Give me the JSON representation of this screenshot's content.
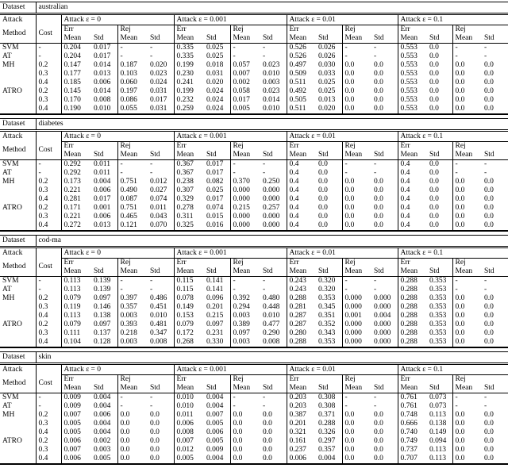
{
  "colors": {
    "text": "#000000",
    "background": "#ffffff",
    "rule": "#000000"
  },
  "labels": {
    "dataset": "Dataset",
    "attack": "Attack",
    "method": "Method",
    "cost": "Cost",
    "err": "Err",
    "rej": "Rej",
    "mean": "Mean",
    "std": "Std",
    "attack_groups": [
      "Attack ε = 0",
      "Attack ε = 0.001",
      "Attack ε = 0.01",
      "Attack ε = 0.1"
    ]
  },
  "tables": [
    {
      "dataset": "australian",
      "rows": [
        {
          "method": "SVM",
          "cost": "-",
          "values": [
            "0.204",
            "0.017",
            "-",
            "-",
            "0.335",
            "0.025",
            "-",
            "-",
            "0.526",
            "0.026",
            "-",
            "-",
            "0.553",
            "0.0",
            "-",
            "-"
          ],
          "bold": [
            12
          ]
        },
        {
          "method": "AT",
          "cost": "-",
          "values": [
            "0.204",
            "0.017",
            "-",
            "-",
            "0.335",
            "0.025",
            "-",
            "-",
            "0.526",
            "0.026",
            "-",
            "-",
            "0.553",
            "0.0",
            "-",
            "-"
          ],
          "bold": [
            12
          ]
        },
        {
          "method": "MH",
          "cost": "0.2",
          "values": [
            "0.147",
            "0.014",
            "0.187",
            "0.020",
            "0.199",
            "0.018",
            "0.057",
            "0.023",
            "0.497",
            "0.030",
            "0.0",
            "0.0",
            "0.553",
            "0.0",
            "0.0",
            "0.0"
          ],
          "bold": [
            4,
            12
          ]
        },
        {
          "method": "",
          "cost": "0.3",
          "values": [
            "0.177",
            "0.013",
            "0.103",
            "0.023",
            "0.230",
            "0.031",
            "0.007",
            "0.010",
            "0.509",
            "0.033",
            "0.0",
            "0.0",
            "0.553",
            "0.0",
            "0.0",
            "0.0"
          ],
          "bold": [
            12
          ]
        },
        {
          "method": "",
          "cost": "0.4",
          "values": [
            "0.185",
            "0.006",
            "0.060",
            "0.024",
            "0.241",
            "0.020",
            "0.002",
            "0.003",
            "0.511",
            "0.025",
            "0.0",
            "0.0",
            "0.553",
            "0.0",
            "0.0",
            "0.0"
          ],
          "bold": [
            12
          ]
        },
        {
          "method": "ATRO",
          "cost": "0.2",
          "values": [
            "0.145",
            "0.014",
            "0.197",
            "0.031",
            "0.199",
            "0.024",
            "0.058",
            "0.023",
            "0.492",
            "0.025",
            "0.0",
            "0.0",
            "0.553",
            "0.0",
            "0.0",
            "0.0"
          ],
          "bold": [
            0,
            4,
            8,
            12
          ]
        },
        {
          "method": "",
          "cost": "0.3",
          "values": [
            "0.170",
            "0.008",
            "0.086",
            "0.017",
            "0.232",
            "0.024",
            "0.017",
            "0.014",
            "0.505",
            "0.013",
            "0.0",
            "0.0",
            "0.553",
            "0.0",
            "0.0",
            "0.0"
          ],
          "bold": [
            12
          ]
        },
        {
          "method": "",
          "cost": "0.4",
          "values": [
            "0.190",
            "0.010",
            "0.055",
            "0.031",
            "0.259",
            "0.024",
            "0.005",
            "0.010",
            "0.511",
            "0.020",
            "0.0",
            "0.0",
            "0.553",
            "0.0",
            "0.0",
            "0.0"
          ],
          "bold": [
            12
          ]
        }
      ]
    },
    {
      "dataset": "diabetes",
      "rows": [
        {
          "method": "SVM",
          "cost": "-",
          "values": [
            "0.292",
            "0.011",
            "-",
            "-",
            "0.367",
            "0.017",
            "-",
            "-",
            "0.4",
            "0.0",
            "-",
            "-",
            "0.4",
            "0.0",
            "-",
            "-"
          ],
          "bold": [
            8,
            12
          ]
        },
        {
          "method": "AT",
          "cost": "-",
          "values": [
            "0.292",
            "0.011",
            "-",
            "-",
            "0.367",
            "0.017",
            "-",
            "-",
            "0.4",
            "0.0",
            "-",
            "-",
            "0.4",
            "0.0",
            "-",
            "-"
          ],
          "bold": [
            8,
            12
          ]
        },
        {
          "method": "MH",
          "cost": "0.2",
          "values": [
            "0.173",
            "0.004",
            "0.751",
            "0.012",
            "0.238",
            "0.082",
            "0.370",
            "0.250",
            "0.4",
            "0.0",
            "0.0",
            "0.0",
            "0.4",
            "0.0",
            "0.0",
            "0.0"
          ],
          "bold": [
            4,
            8,
            12
          ]
        },
        {
          "method": "",
          "cost": "0.3",
          "values": [
            "0.221",
            "0.006",
            "0.490",
            "0.027",
            "0.307",
            "0.025",
            "0.000",
            "0.000",
            "0.4",
            "0.0",
            "0.0",
            "0.0",
            "0.4",
            "0.0",
            "0.0",
            "0.0"
          ],
          "bold": [
            8,
            12
          ]
        },
        {
          "method": "",
          "cost": "0.4",
          "values": [
            "0.281",
            "0.017",
            "0.087",
            "0.074",
            "0.329",
            "0.017",
            "0.000",
            "0.000",
            "0.4",
            "0.0",
            "0.0",
            "0.0",
            "0.4",
            "0.0",
            "0.0",
            "0.0"
          ],
          "bold": [
            8,
            12
          ]
        },
        {
          "method": "ATRO",
          "cost": "0.2",
          "values": [
            "0.171",
            "0.001",
            "0.751",
            "0.011",
            "0.278",
            "0.074",
            "0.215",
            "0.257",
            "0.4",
            "0.0",
            "0.0",
            "0.0",
            "0.4",
            "0.0",
            "0.0",
            "0.0"
          ],
          "bold": [
            0,
            8,
            12
          ]
        },
        {
          "method": "",
          "cost": "0.3",
          "values": [
            "0.221",
            "0.006",
            "0.465",
            "0.043",
            "0.311",
            "0.015",
            "0.000",
            "0.000",
            "0.4",
            "0.0",
            "0.0",
            "0.0",
            "0.4",
            "0.0",
            "0.0",
            "0.0"
          ],
          "bold": [
            8,
            12
          ]
        },
        {
          "method": "",
          "cost": "0.4",
          "values": [
            "0.272",
            "0.013",
            "0.121",
            "0.070",
            "0.325",
            "0.016",
            "0.000",
            "0.000",
            "0.4",
            "0.0",
            "0.0",
            "0.0",
            "0.4",
            "0.0",
            "0.0",
            "0.0"
          ],
          "bold": [
            8,
            12
          ]
        }
      ]
    },
    {
      "dataset": "cod-ma",
      "rows": [
        {
          "method": "SVM",
          "cost": "-",
          "values": [
            "0.113",
            "0.139",
            "-",
            "-",
            "0.115",
            "0.141",
            "-",
            "-",
            "0.243",
            "0.320",
            "-",
            "-",
            "0.288",
            "0.353",
            "-",
            "-"
          ],
          "bold": [
            8,
            12
          ]
        },
        {
          "method": "AT",
          "cost": "-",
          "values": [
            "0.113",
            "0.139",
            "-",
            "-",
            "0.115",
            "0.141",
            "-",
            "-",
            "0.243",
            "0.320",
            "-",
            "-",
            "0.288",
            "0.353",
            "-",
            "-"
          ],
          "bold": [
            8,
            12
          ]
        },
        {
          "method": "MH",
          "cost": "0.2",
          "values": [
            "0.079",
            "0.097",
            "0.397",
            "0.486",
            "0.078",
            "0.096",
            "0.392",
            "0.480",
            "0.288",
            "0.353",
            "0.000",
            "0.000",
            "0.288",
            "0.353",
            "0.0",
            "0.0"
          ],
          "bold": [
            0,
            4,
            12
          ]
        },
        {
          "method": "",
          "cost": "0.3",
          "values": [
            "0.119",
            "0.146",
            "0.357",
            "0.451",
            "0.149",
            "0.201",
            "0.294",
            "0.448",
            "0.281",
            "0.345",
            "0.000",
            "0.000",
            "0.288",
            "0.353",
            "0.0",
            "0.0"
          ],
          "bold": [
            12
          ]
        },
        {
          "method": "",
          "cost": "0.4",
          "values": [
            "0.113",
            "0.138",
            "0.003",
            "0.010",
            "0.153",
            "0.215",
            "0.003",
            "0.010",
            "0.287",
            "0.351",
            "0.001",
            "0.004",
            "0.288",
            "0.353",
            "0.0",
            "0.0"
          ],
          "bold": [
            12
          ]
        },
        {
          "method": "ATRO",
          "cost": "0.2",
          "values": [
            "0.079",
            "0.097",
            "0.393",
            "0.481",
            "0.079",
            "0.097",
            "0.389",
            "0.477",
            "0.287",
            "0.352",
            "0.000",
            "0.000",
            "0.288",
            "0.353",
            "0.0",
            "0.0"
          ],
          "bold": [
            0,
            12
          ]
        },
        {
          "method": "",
          "cost": "0.3",
          "values": [
            "0.111",
            "0.137",
            "0.218",
            "0.347",
            "0.172",
            "0.231",
            "0.097",
            "0.290",
            "0.280",
            "0.343",
            "0.000",
            "0.000",
            "0.288",
            "0.353",
            "0.0",
            "0.0"
          ],
          "bold": [
            12
          ]
        },
        {
          "method": "",
          "cost": "0.4",
          "values": [
            "0.104",
            "0.128",
            "0.003",
            "0.008",
            "0.268",
            "0.330",
            "0.003",
            "0.008",
            "0.288",
            "0.353",
            "0.000",
            "0.000",
            "0.288",
            "0.353",
            "0.0",
            "0.0"
          ],
          "bold": [
            12
          ]
        }
      ]
    },
    {
      "dataset": "skin",
      "rows": [
        {
          "method": "SVM",
          "cost": "-",
          "values": [
            "0.009",
            "0.004",
            "-",
            "-",
            "0.010",
            "0.004",
            "-",
            "-",
            "0.203",
            "0.308",
            "-",
            "-",
            "0.761",
            "0.073",
            "-",
            "-"
          ],
          "bold": []
        },
        {
          "method": "AT",
          "cost": "-",
          "values": [
            "0.009",
            "0.004",
            "-",
            "-",
            "0.010",
            "0.004",
            "-",
            "-",
            "0.203",
            "0.308",
            "-",
            "-",
            "0.761",
            "0.073",
            "-",
            "-"
          ],
          "bold": []
        },
        {
          "method": "MH",
          "cost": "0.2",
          "values": [
            "0.007",
            "0.006",
            "0.0",
            "0.0",
            "0.011",
            "0.007",
            "0.0",
            "0.0",
            "0.387",
            "0.371",
            "0.0",
            "0.0",
            "0.748",
            "0.113",
            "0.0",
            "0.0"
          ],
          "bold": []
        },
        {
          "method": "",
          "cost": "0.3",
          "values": [
            "0.005",
            "0.004",
            "0.0",
            "0.0",
            "0.006",
            "0.005",
            "0.0",
            "0.0",
            "0.201",
            "0.288",
            "0.0",
            "0.0",
            "0.666",
            "0.138",
            "0.0",
            "0.0"
          ],
          "bold": [
            0,
            12
          ]
        },
        {
          "method": "",
          "cost": "0.4",
          "values": [
            "0.005",
            "0.004",
            "0.0",
            "0.0",
            "0.008",
            "0.006",
            "0.0",
            "0.0",
            "0.321",
            "0.326",
            "0.0",
            "0.0",
            "0.740",
            "0.149",
            "0.0",
            "0.0"
          ],
          "bold": [
            0
          ]
        },
        {
          "method": "ATRO",
          "cost": "0.2",
          "values": [
            "0.006",
            "0.002",
            "0.0",
            "0.0",
            "0.007",
            "0.005",
            "0.0",
            "0.0",
            "0.161",
            "0.297",
            "0.0",
            "0.0",
            "0.749",
            "0.094",
            "0.0",
            "0.0"
          ],
          "bold": []
        },
        {
          "method": "",
          "cost": "0.3",
          "values": [
            "0.007",
            "0.003",
            "0.0",
            "0.0",
            "0.012",
            "0.009",
            "0.0",
            "0.0",
            "0.237",
            "0.357",
            "0.0",
            "0.0",
            "0.737",
            "0.113",
            "0.0",
            "0.0"
          ],
          "bold": []
        },
        {
          "method": "",
          "cost": "0.4",
          "values": [
            "0.006",
            "0.005",
            "0.0",
            "0.0",
            "0.005",
            "0.004",
            "0.0",
            "0.0",
            "0.006",
            "0.004",
            "0.0",
            "0.0",
            "0.707",
            "0.113",
            "0.0",
            "0.0"
          ],
          "bold": [
            4,
            8
          ]
        }
      ]
    }
  ]
}
